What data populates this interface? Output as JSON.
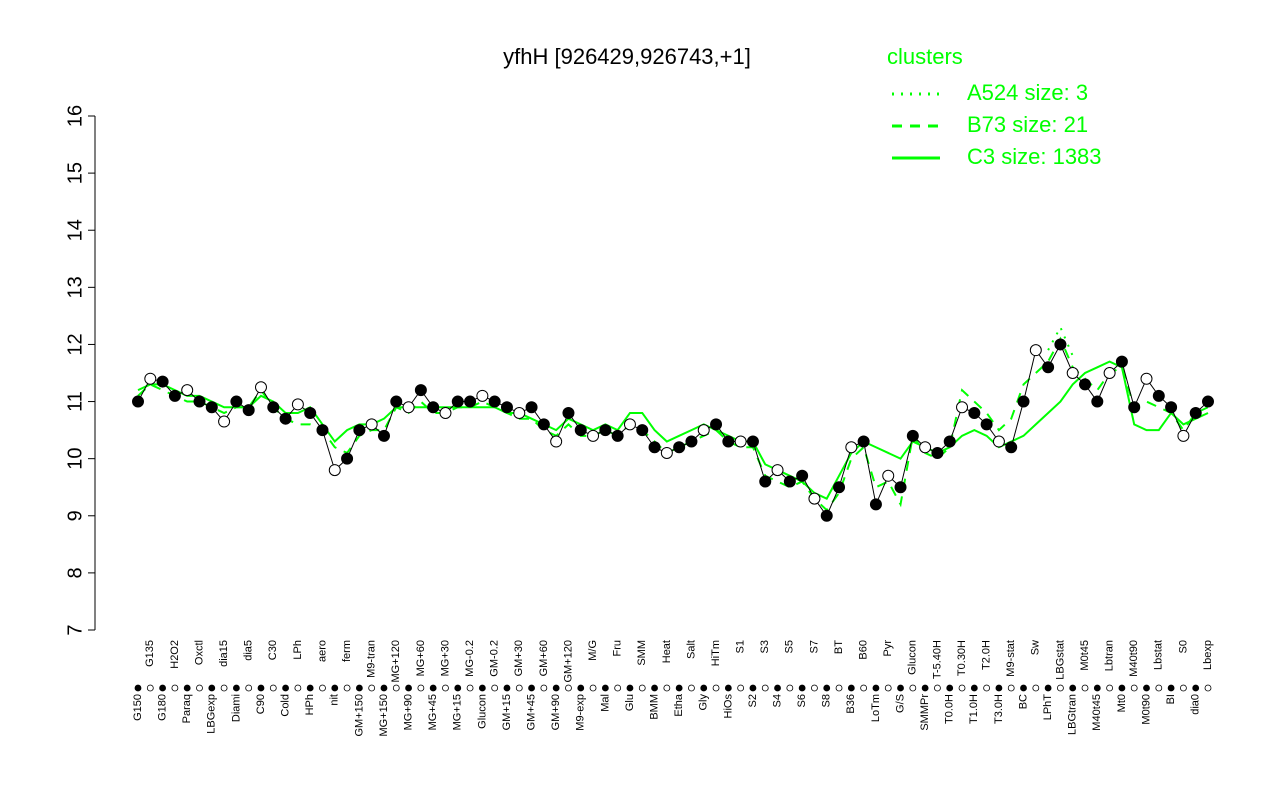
{
  "chart_data": {
    "type": "line",
    "title": "yfhH [926429,926743,+1]",
    "legend_title": "clusters",
    "legend_position": "top-right",
    "ylim": [
      7,
      16
    ],
    "yticks": [
      7,
      8,
      9,
      10,
      11,
      12,
      13,
      14,
      15,
      16
    ],
    "categories": [
      "G150",
      "G135",
      "G180",
      "H2O2",
      "Paraq",
      "Oxctl",
      "LBGexp",
      "dia15",
      "Diami",
      "dia5",
      "C90",
      "C30",
      "Cold",
      "LPh",
      "HPh",
      "aero",
      "nit",
      "ferm",
      "GM+150",
      "M9-tran",
      "MG+150",
      "MG+120",
      "MG+90",
      "MG+60",
      "MG+45",
      "MG+30",
      "MG+15",
      "MG-0.2",
      "Glucon",
      "GM-0.2",
      "GM+15",
      "GM+30",
      "GM+45",
      "GM+60",
      "GM+90",
      "GM+120",
      "M9-exp",
      "M/G",
      "Mal",
      "Fru",
      "Glu",
      "SMM",
      "BMM",
      "Heat",
      "Etha",
      "Salt",
      "Gly",
      "HiTm",
      "HiOs",
      "S1",
      "S2",
      "S3",
      "S4",
      "S5",
      "S6",
      "S7",
      "S8",
      "BT",
      "B36",
      "B60",
      "LoTm",
      "Pyr",
      "G/S",
      "Glucon",
      "SMMPr",
      "T-5.40H",
      "T0.0H",
      "T0.30H",
      "T1.0H",
      "T2.0H",
      "T3.0H",
      "M9-stat",
      "BC",
      "Sw",
      "LPhT",
      "LBGstat",
      "LBGtran",
      "M0t45",
      "M40t45",
      "Lbtran",
      "Mt0",
      "M40t90",
      "M0t90",
      "Lbstat",
      "BI",
      "S0",
      "dia0",
      "Lbexp"
    ],
    "values": [
      11.0,
      11.4,
      11.35,
      11.1,
      11.2,
      11.0,
      10.9,
      10.65,
      11.0,
      10.85,
      11.25,
      10.9,
      10.7,
      10.95,
      10.8,
      10.5,
      9.8,
      10.0,
      10.5,
      10.6,
      10.4,
      11.0,
      10.9,
      11.2,
      10.9,
      10.8,
      11.0,
      11.0,
      11.1,
      11.0,
      10.9,
      10.8,
      10.9,
      10.6,
      10.3,
      10.8,
      10.5,
      10.4,
      10.5,
      10.4,
      10.6,
      10.5,
      10.2,
      10.1,
      10.2,
      10.3,
      10.5,
      10.6,
      10.3,
      10.3,
      10.3,
      9.6,
      9.8,
      9.6,
      9.7,
      9.3,
      9.0,
      9.5,
      10.2,
      10.3,
      9.2,
      9.7,
      9.5,
      10.4,
      10.2,
      10.1,
      10.3,
      10.9,
      10.8,
      10.6,
      10.3,
      10.2,
      11.0,
      11.9,
      11.6,
      12.0,
      11.5,
      11.3,
      11.0,
      11.5,
      11.7,
      10.9,
      11.4,
      11.1,
      10.9,
      10.4,
      10.8,
      11.0
    ],
    "color": "#000000",
    "series": [
      {
        "name": "A524 size: 3",
        "color": "#00ff00",
        "linestyle": "dotted",
        "values": [
          null,
          null,
          null,
          null,
          null,
          null,
          null,
          null,
          null,
          null,
          null,
          null,
          null,
          null,
          null,
          null,
          null,
          null,
          null,
          null,
          null,
          null,
          null,
          null,
          null,
          null,
          null,
          null,
          null,
          null,
          null,
          null,
          null,
          null,
          null,
          null,
          null,
          null,
          null,
          null,
          null,
          null,
          null,
          null,
          null,
          null,
          null,
          null,
          null,
          null,
          null,
          null,
          null,
          null,
          null,
          null,
          null,
          null,
          null,
          null,
          null,
          null,
          null,
          null,
          null,
          null,
          null,
          null,
          null,
          null,
          null,
          null,
          null,
          null,
          11.9,
          12.3,
          11.8,
          null,
          null,
          null,
          null,
          null,
          null,
          null,
          null,
          null,
          null,
          null
        ]
      },
      {
        "name": "B73 size: 21",
        "color": "#00ff00",
        "linestyle": "dashed",
        "values": [
          11.1,
          11.3,
          11.2,
          11.1,
          11.0,
          11.0,
          10.9,
          10.8,
          10.9,
          10.9,
          11.2,
          10.9,
          10.7,
          10.6,
          10.6,
          10.5,
          10.2,
          10.1,
          10.4,
          10.5,
          10.5,
          10.9,
          10.8,
          11.0,
          10.8,
          10.8,
          10.9,
          10.9,
          11.0,
          10.9,
          10.8,
          10.7,
          10.7,
          10.5,
          10.4,
          10.6,
          10.4,
          10.4,
          10.5,
          10.4,
          10.6,
          10.5,
          10.3,
          10.1,
          10.2,
          10.3,
          10.4,
          10.5,
          10.3,
          10.2,
          10.2,
          9.7,
          9.6,
          9.5,
          9.6,
          9.3,
          9.1,
          9.4,
          10.0,
          10.2,
          9.5,
          9.6,
          9.2,
          10.4,
          10.1,
          10.0,
          10.2,
          11.2,
          11.0,
          10.8,
          10.5,
          10.7,
          11.3,
          11.5,
          11.7,
          12.1,
          11.6,
          11.4,
          11.2,
          11.5,
          11.6,
          10.9,
          11.0,
          10.9,
          10.8,
          10.5,
          10.8,
          10.9
        ]
      },
      {
        "name": "C3 size: 1383",
        "color": "#00ff00",
        "linestyle": "solid",
        "values": [
          11.2,
          11.3,
          11.3,
          11.2,
          11.1,
          11.1,
          11.0,
          10.9,
          10.9,
          10.9,
          11.1,
          11.0,
          10.8,
          10.8,
          10.9,
          10.6,
          10.3,
          10.5,
          10.6,
          10.6,
          10.7,
          10.9,
          10.9,
          10.9,
          10.9,
          10.9,
          10.9,
          10.9,
          10.9,
          10.9,
          10.8,
          10.8,
          10.7,
          10.6,
          10.5,
          10.7,
          10.6,
          10.5,
          10.6,
          10.5,
          10.8,
          10.8,
          10.5,
          10.3,
          10.4,
          10.5,
          10.6,
          10.5,
          10.4,
          10.3,
          10.3,
          9.9,
          9.8,
          9.7,
          9.6,
          9.4,
          9.3,
          9.7,
          10.1,
          10.3,
          10.2,
          10.1,
          10.0,
          10.3,
          10.2,
          10.1,
          10.2,
          10.4,
          10.5,
          10.4,
          10.2,
          10.3,
          10.4,
          10.6,
          10.8,
          11.0,
          11.3,
          11.5,
          11.6,
          11.7,
          11.6,
          10.6,
          10.5,
          10.5,
          10.8,
          10.6,
          10.7,
          10.8
        ]
      }
    ]
  }
}
